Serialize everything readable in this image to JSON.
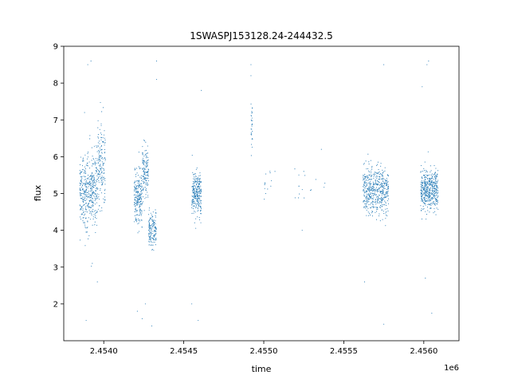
{
  "chart_data": {
    "type": "scatter",
    "title": "1SWASPJ153128.24-244432.5",
    "xlabel": "time",
    "ylabel": "flux",
    "x_offset_label": "1e6",
    "xlim": [
      2.45375,
      2.45622
    ],
    "ylim": [
      1.0,
      9.0
    ],
    "xticks": [
      2.454,
      2.4545,
      2.455,
      2.4555,
      2.456
    ],
    "xtick_labels": [
      "2.4540",
      "2.4545",
      "2.4550",
      "2.4555",
      "2.4560"
    ],
    "yticks": [
      2,
      3,
      4,
      5,
      6,
      7,
      8,
      9
    ],
    "ytick_labels": [
      "2",
      "3",
      "4",
      "5",
      "6",
      "7",
      "8",
      "9"
    ],
    "grid": false,
    "point_color": "#1f77b4",
    "clusters": [
      {
        "x_range": [
          2.45385,
          2.45396
        ],
        "flux_mean": 5.1,
        "flux_spread": 0.9,
        "count": 420
      },
      {
        "x_range": [
          2.45396,
          2.45401
        ],
        "flux_mean": 5.8,
        "flux_spread": 1.1,
        "count": 160
      },
      {
        "x_range": [
          2.45419,
          2.45424
        ],
        "flux_mean": 4.9,
        "flux_spread": 0.7,
        "count": 220
      },
      {
        "x_range": [
          2.45424,
          2.45428
        ],
        "flux_mean": 5.6,
        "flux_spread": 0.5,
        "count": 140
      },
      {
        "x_range": [
          2.45428,
          2.45433
        ],
        "flux_mean": 4.0,
        "flux_spread": 0.45,
        "count": 150
      },
      {
        "x_range": [
          2.45455,
          2.45461
        ],
        "flux_mean": 5.0,
        "flux_spread": 0.55,
        "count": 260
      },
      {
        "x_range": [
          2.45492,
          2.45493
        ],
        "flux_mean": 6.8,
        "flux_spread": 0.7,
        "count": 30
      },
      {
        "x_range": [
          2.455,
          2.45505
        ],
        "flux_mean": 5.3,
        "flux_spread": 0.5,
        "count": 12
      },
      {
        "x_range": [
          2.45519,
          2.4554
        ],
        "flux_mean": 5.2,
        "flux_spread": 0.6,
        "count": 14
      },
      {
        "x_range": [
          2.45562,
          2.45578
        ],
        "flux_mean": 5.1,
        "flux_spread": 0.55,
        "count": 520
      },
      {
        "x_range": [
          2.45598,
          2.45609
        ],
        "flux_mean": 5.1,
        "flux_spread": 0.5,
        "count": 460
      }
    ],
    "outliers": [
      {
        "x": 2.4539,
        "y": 8.5
      },
      {
        "x": 2.45392,
        "y": 8.6
      },
      {
        "x": 2.45389,
        "y": 1.55
      },
      {
        "x": 2.45396,
        "y": 2.6
      },
      {
        "x": 2.45388,
        "y": 7.2
      },
      {
        "x": 2.45421,
        "y": 1.8
      },
      {
        "x": 2.45424,
        "y": 1.6
      },
      {
        "x": 2.4543,
        "y": 1.4
      },
      {
        "x": 2.45426,
        "y": 2.0
      },
      {
        "x": 2.45433,
        "y": 8.6
      },
      {
        "x": 2.45433,
        "y": 8.1
      },
      {
        "x": 2.45455,
        "y": 2.0
      },
      {
        "x": 2.45459,
        "y": 1.55
      },
      {
        "x": 2.45461,
        "y": 7.8
      },
      {
        "x": 2.45492,
        "y": 8.5
      },
      {
        "x": 2.45492,
        "y": 8.2
      },
      {
        "x": 2.45575,
        "y": 8.5
      },
      {
        "x": 2.45575,
        "y": 1.45
      },
      {
        "x": 2.45563,
        "y": 2.6
      },
      {
        "x": 2.45602,
        "y": 8.5
      },
      {
        "x": 2.45603,
        "y": 8.6
      },
      {
        "x": 2.45601,
        "y": 2.7
      },
      {
        "x": 2.45605,
        "y": 1.75
      },
      {
        "x": 2.45599,
        "y": 7.9
      },
      {
        "x": 2.45507,
        "y": 5.6
      },
      {
        "x": 2.45525,
        "y": 5.6
      },
      {
        "x": 2.45536,
        "y": 6.2
      },
      {
        "x": 2.45524,
        "y": 4.0
      },
      {
        "x": 2.45522,
        "y": 5.2
      }
    ]
  }
}
